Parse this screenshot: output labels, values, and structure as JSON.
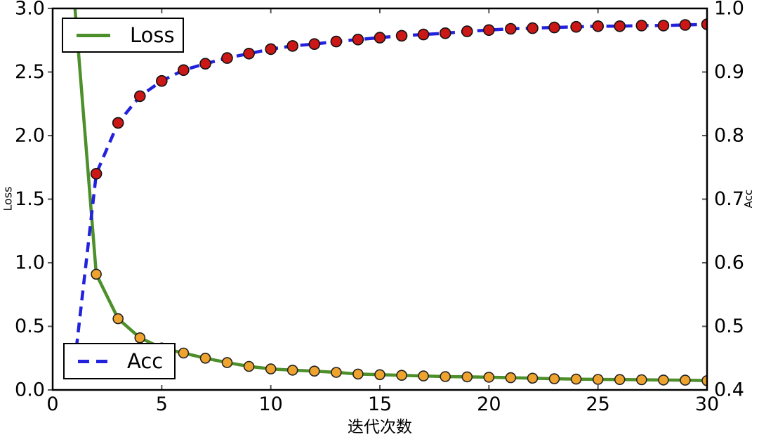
{
  "figure": {
    "background": "#ffffff",
    "text_color": "#000000",
    "tick_color": "#555555"
  },
  "chart_data": {
    "type": "line",
    "title": "",
    "xlabel": "迭代次数",
    "ylabel_left": "Loss",
    "ylabel_right": "Acc",
    "xlim": [
      0,
      30
    ],
    "ylim_left": [
      0.0,
      3.0
    ],
    "ylim_right": [
      0.4,
      1.0
    ],
    "grid": false,
    "legend_entries": [
      "Loss",
      "Acc"
    ],
    "x_ticks": [
      "0",
      "5",
      "10",
      "15",
      "20",
      "25",
      "30"
    ],
    "y_ticks_left": [
      "0.0",
      "0.5",
      "1.0",
      "1.5",
      "2.0",
      "2.5",
      "3.0"
    ],
    "y_ticks_right": [
      "0.4",
      "0.5",
      "0.6",
      "0.7",
      "0.8",
      "0.9",
      "1.0"
    ],
    "x": [
      1,
      2,
      3,
      4,
      5,
      6,
      7,
      8,
      9,
      10,
      11,
      12,
      13,
      14,
      15,
      16,
      17,
      18,
      19,
      20,
      21,
      22,
      23,
      24,
      25,
      26,
      27,
      28,
      29,
      30
    ],
    "series": [
      {
        "name": "Loss",
        "axis": "left",
        "line_style": "solid",
        "line_color": "#4d8f2a",
        "marker": "circle",
        "marker_color": "#efa32f",
        "marker_edge_color": "#222222",
        "legend_position": "upper-left",
        "values": [
          3.05,
          0.91,
          0.56,
          0.41,
          0.33,
          0.29,
          0.25,
          0.215,
          0.185,
          0.165,
          0.155,
          0.148,
          0.138,
          0.125,
          0.12,
          0.115,
          0.11,
          0.105,
          0.103,
          0.1,
          0.096,
          0.092,
          0.088,
          0.085,
          0.083,
          0.082,
          0.08,
          0.078,
          0.077,
          0.073
        ]
      },
      {
        "name": "Acc",
        "axis": "right",
        "line_style": "dashed",
        "line_color": "#2222dd",
        "marker": "circle",
        "marker_color": "#cc1717",
        "marker_edge_color": "#111111",
        "legend_position": "lower-left",
        "values": [
          0.44,
          0.74,
          0.82,
          0.862,
          0.886,
          0.903,
          0.913,
          0.922,
          0.929,
          0.936,
          0.941,
          0.944,
          0.948,
          0.951,
          0.954,
          0.957,
          0.959,
          0.961,
          0.964,
          0.966,
          0.968,
          0.969,
          0.97,
          0.971,
          0.972,
          0.972,
          0.973,
          0.973,
          0.974,
          0.975
        ]
      }
    ]
  }
}
